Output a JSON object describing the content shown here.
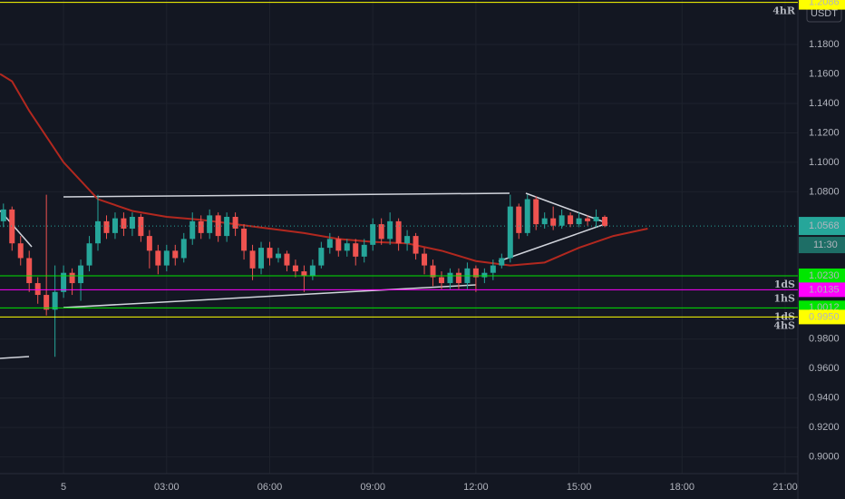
{
  "chart_data": {
    "type": "candlestick",
    "currency": "USDT",
    "x": [
      -1.75,
      -1.5,
      -1.25,
      -1,
      -0.75,
      -0.5,
      -0.25,
      0,
      0.25,
      0.5,
      0.75,
      1,
      1.25,
      1.5,
      1.75,
      2,
      2.25,
      2.5,
      2.75,
      3,
      3.25,
      3.5,
      3.75,
      4,
      4.25,
      4.5,
      4.75,
      5,
      5.25,
      5.5,
      5.75,
      6,
      6.25,
      6.5,
      6.75,
      7,
      7.25,
      7.5,
      7.75,
      8,
      8.25,
      8.5,
      8.75,
      9,
      9.25,
      9.5,
      9.75,
      10,
      10.25,
      10.5,
      10.75,
      11,
      11.25,
      11.5,
      11.75,
      12,
      12.25,
      12.5,
      12.75,
      13,
      13.25,
      13.5,
      13.75,
      14,
      14.25,
      14.5,
      14.75,
      15,
      15.25,
      15.5,
      15.75
    ],
    "open": [
      1.06,
      1.068,
      1.045,
      1.035,
      1.018,
      1.01,
      1.0,
      1.012,
      1.025,
      1.018,
      1.03,
      1.045,
      1.06,
      1.052,
      1.062,
      1.055,
      1.063,
      1.05,
      1.04,
      1.03,
      1.04,
      1.035,
      1.048,
      1.06,
      1.052,
      1.064,
      1.05,
      1.063,
      1.055,
      1.04,
      1.028,
      1.042,
      1.035,
      1.038,
      1.03,
      1.026,
      1.023,
      1.03,
      1.042,
      1.048,
      1.04,
      1.045,
      1.036,
      1.044,
      1.058,
      1.048,
      1.06,
      1.045,
      1.05,
      1.038,
      1.03,
      1.022,
      1.018,
      1.025,
      1.018,
      1.028,
      1.022,
      1.025,
      1.03,
      1.035,
      1.07,
      1.052,
      1.075,
      1.058,
      1.062,
      1.057,
      1.064,
      1.058,
      1.062,
      1.06,
      1.063
    ],
    "high": [
      1.072,
      1.07,
      1.05,
      1.04,
      1.022,
      1.078,
      1.03,
      1.03,
      1.028,
      1.034,
      1.05,
      1.078,
      1.064,
      1.066,
      1.066,
      1.066,
      1.065,
      1.054,
      1.044,
      1.044,
      1.044,
      1.052,
      1.066,
      1.064,
      1.068,
      1.066,
      1.066,
      1.066,
      1.058,
      1.044,
      1.046,
      1.046,
      1.042,
      1.04,
      1.034,
      1.03,
      1.034,
      1.046,
      1.052,
      1.05,
      1.048,
      1.048,
      1.048,
      1.062,
      1.062,
      1.066,
      1.062,
      1.054,
      1.052,
      1.042,
      1.034,
      1.026,
      1.028,
      1.028,
      1.032,
      1.03,
      1.028,
      1.034,
      1.038,
      1.078,
      1.072,
      1.078,
      1.077,
      1.066,
      1.07,
      1.068,
      1.066,
      1.066,
      1.064,
      1.068,
      1.064
    ],
    "low": [
      1.056,
      1.04,
      1.03,
      1.012,
      1.004,
      0.996,
      0.968,
      1.008,
      1.01,
      1.006,
      1.026,
      1.04,
      1.048,
      1.048,
      1.05,
      1.05,
      1.046,
      1.028,
      1.024,
      1.026,
      1.03,
      1.032,
      1.044,
      1.048,
      1.048,
      1.046,
      1.046,
      1.05,
      1.034,
      1.02,
      1.024,
      1.03,
      1.032,
      1.026,
      1.022,
      1.012,
      1.02,
      1.028,
      1.038,
      1.036,
      1.036,
      1.03,
      1.032,
      1.04,
      1.044,
      1.044,
      1.04,
      1.04,
      1.034,
      1.024,
      1.016,
      1.014,
      1.014,
      1.014,
      1.014,
      1.012,
      1.018,
      1.02,
      1.028,
      1.032,
      1.048,
      1.05,
      1.054,
      1.055,
      1.054,
      1.055,
      1.056,
      1.056,
      1.057,
      1.056,
      1.056
    ],
    "close": [
      1.068,
      1.045,
      1.035,
      1.018,
      1.01,
      1.0,
      1.012,
      1.025,
      1.018,
      1.03,
      1.045,
      1.06,
      1.052,
      1.062,
      1.055,
      1.063,
      1.05,
      1.04,
      1.03,
      1.04,
      1.035,
      1.048,
      1.06,
      1.052,
      1.064,
      1.05,
      1.063,
      1.055,
      1.04,
      1.028,
      1.042,
      1.035,
      1.038,
      1.03,
      1.026,
      1.023,
      1.03,
      1.042,
      1.048,
      1.04,
      1.045,
      1.036,
      1.044,
      1.058,
      1.048,
      1.06,
      1.045,
      1.05,
      1.038,
      1.03,
      1.022,
      1.018,
      1.025,
      1.018,
      1.028,
      1.022,
      1.025,
      1.03,
      1.035,
      1.07,
      1.052,
      1.075,
      1.058,
      1.062,
      1.057,
      1.064,
      1.058,
      1.062,
      1.06,
      1.063,
      1.0568
    ],
    "up_color": "#26a69a",
    "down_color": "#ef5350",
    "ma": {
      "color": "#b2281f",
      "x": [
        -1.85,
        -1.5,
        -1,
        0,
        1,
        2,
        3,
        4,
        5,
        6,
        7,
        8,
        9,
        10,
        11,
        12,
        13,
        14,
        15,
        16,
        17
      ],
      "values": [
        1.16,
        1.155,
        1.135,
        1.1,
        1.075,
        1.067,
        1.063,
        1.061,
        1.058,
        1.055,
        1.052,
        1.048,
        1.046,
        1.045,
        1.04,
        1.033,
        1.03,
        1.032,
        1.042,
        1.05,
        1.055
      ]
    },
    "levels": [
      {
        "name": "4hR",
        "value": 1.2086,
        "label": "1.2086",
        "color": "#ffff00"
      },
      {
        "name": "1dS",
        "value": 1.023,
        "label": "1.0230",
        "color": "#00e600"
      },
      {
        "name": "1hS",
        "value": 1.0135,
        "label": "1.0135",
        "color": "#ff00ff"
      },
      {
        "name": "1dS",
        "value": 1.0012,
        "label": "1.0012",
        "color": "#00e600"
      },
      {
        "name": "4hS",
        "value": 0.995,
        "label": "0.9950",
        "color": "#ffff00"
      }
    ],
    "last_price": {
      "value": 1.0568,
      "countdown": "11:30"
    },
    "xlim": [
      -1.85,
      21.37
    ],
    "ylim": [
      0.8887,
      1.2102
    ],
    "xticks": [
      {
        "value": 0,
        "label": "5"
      },
      {
        "value": 3,
        "label": "03:00"
      },
      {
        "value": 6,
        "label": "06:00"
      },
      {
        "value": 9,
        "label": "09:00"
      },
      {
        "value": 12,
        "label": "12:00"
      },
      {
        "value": 15,
        "label": "15:00"
      },
      {
        "value": 18,
        "label": "18:00"
      },
      {
        "value": 21,
        "label": "21:00"
      }
    ],
    "yticks": [
      {
        "value": 1.18,
        "label": "1.1800"
      },
      {
        "value": 1.16,
        "label": "1.1600"
      },
      {
        "value": 1.14,
        "label": "1.1400"
      },
      {
        "value": 1.12,
        "label": "1.1200"
      },
      {
        "value": 1.1,
        "label": "1.1000"
      },
      {
        "value": 1.08,
        "label": "1.0800"
      },
      {
        "value": 0.98,
        "label": "0.9800"
      },
      {
        "value": 0.96,
        "label": "0.9600"
      },
      {
        "value": 0.94,
        "label": "0.9400"
      },
      {
        "value": 0.92,
        "label": "0.9200"
      },
      {
        "value": 0.9,
        "label": "0.9000"
      }
    ],
    "grid": true
  }
}
